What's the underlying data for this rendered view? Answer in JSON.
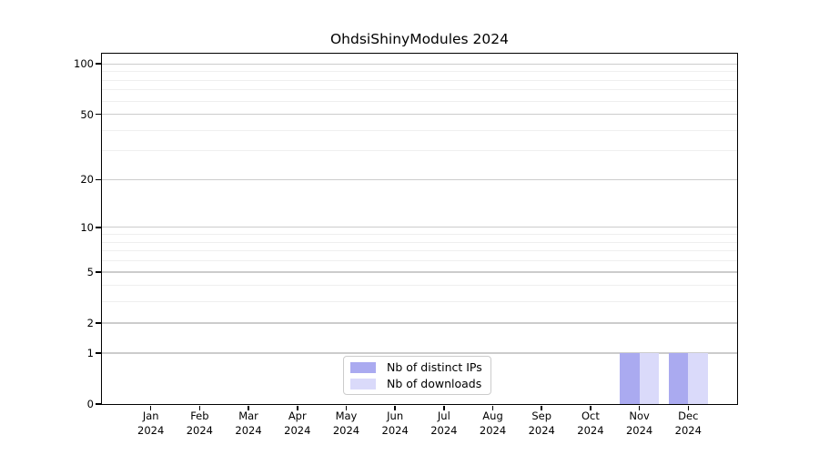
{
  "chart_data": {
    "type": "bar",
    "title": "OhdsiShinyModules 2024",
    "x": {
      "months": [
        "Jan",
        "Feb",
        "Mar",
        "Apr",
        "May",
        "Jun",
        "Jul",
        "Aug",
        "Sep",
        "Oct",
        "Nov",
        "Dec"
      ],
      "year": "2024"
    },
    "series": [
      {
        "name": "Nb of distinct IPs",
        "color": "#aaaaf0",
        "values": [
          0,
          0,
          0,
          0,
          0,
          0,
          0,
          0,
          0,
          0,
          1,
          1
        ]
      },
      {
        "name": "Nb of downloads",
        "color": "#dadafa",
        "values": [
          0,
          0,
          0,
          0,
          0,
          0,
          0,
          0,
          0,
          0,
          1,
          1
        ]
      }
    ],
    "y_axis": {
      "scale": "log1p",
      "ylim": [
        0,
        115
      ],
      "major_ticks": [
        0,
        1,
        2,
        5,
        10,
        20,
        50,
        100
      ],
      "minor_gridlines": [
        3,
        4,
        6,
        7,
        8,
        9,
        30,
        40,
        60,
        70,
        80,
        90
      ]
    },
    "legend": {
      "position": "lower center",
      "entries": [
        "Nb of distinct IPs",
        "Nb of downloads"
      ]
    },
    "grid": {
      "major_color": "#cccccc",
      "minor_color": "#efefef"
    },
    "bar_layout": {
      "width_fraction": 0.4,
      "grouping": "side-by-side centered on tick"
    }
  },
  "colors": {
    "background": "#ffffff",
    "axis": "#000000",
    "bar_distinct_ips": "#aaaaf0",
    "bar_downloads": "#dadafa"
  }
}
